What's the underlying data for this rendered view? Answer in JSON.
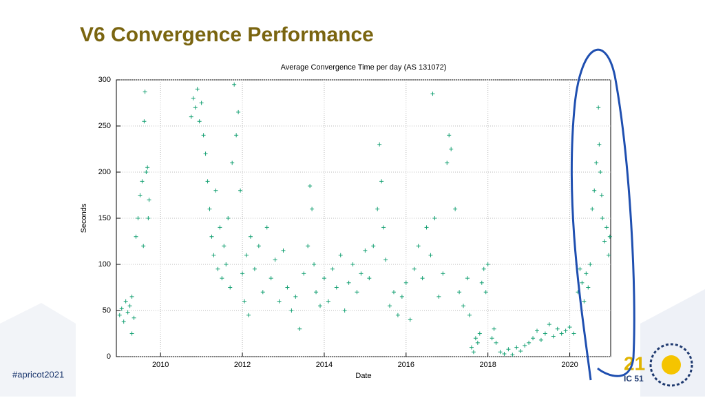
{
  "slide": {
    "title": "V6 Convergence Performance",
    "hashtag": "#apricot2021",
    "logo": [
      "21",
      "IC 51"
    ]
  },
  "chart_data": {
    "type": "scatter",
    "title": "Average Convergence Time per day (AS 131072)",
    "x_label": "Date",
    "y_label": "Seconds",
    "color": "#14a072",
    "grid": true,
    "xlim": [
      2008.92,
      2021.0
    ],
    "xticks": [
      2010,
      2012,
      2014,
      2016,
      2018,
      2020
    ],
    "ylim": [
      0,
      300
    ],
    "yticks": [
      0,
      50,
      100,
      150,
      200,
      250,
      300
    ],
    "x": [
      2009.0,
      2009.05,
      2009.1,
      2009.15,
      2009.2,
      2009.25,
      2009.3,
      2009.35,
      2009.4,
      2009.45,
      2009.5,
      2009.55,
      2009.6,
      2009.62,
      2009.65,
      2009.7,
      2009.72,
      2009.68,
      2009.58,
      2009.3,
      2010.75,
      2010.8,
      2010.85,
      2010.9,
      2010.95,
      2011.0,
      2011.05,
      2011.1,
      2011.15,
      2011.2,
      2011.25,
      2011.3,
      2011.35,
      2011.4,
      2011.45,
      2011.5,
      2011.55,
      2011.6,
      2011.65,
      2011.7,
      2011.75,
      2011.8,
      2011.85,
      2011.9,
      2011.95,
      2012.0,
      2012.05,
      2012.1,
      2012.15,
      2012.2,
      2012.3,
      2012.4,
      2012.5,
      2012.6,
      2012.7,
      2012.8,
      2012.9,
      2013.0,
      2013.1,
      2013.2,
      2013.3,
      2013.4,
      2013.5,
      2013.6,
      2013.65,
      2013.7,
      2013.75,
      2013.8,
      2013.9,
      2014.0,
      2014.1,
      2014.2,
      2014.3,
      2014.4,
      2014.5,
      2014.6,
      2014.7,
      2014.8,
      2014.9,
      2015.0,
      2015.1,
      2015.2,
      2015.3,
      2015.35,
      2015.4,
      2015.45,
      2015.5,
      2015.6,
      2015.7,
      2015.8,
      2015.9,
      2016.0,
      2016.1,
      2016.2,
      2016.3,
      2016.4,
      2016.5,
      2016.6,
      2016.65,
      2016.7,
      2016.8,
      2016.9,
      2017.0,
      2017.05,
      2017.1,
      2017.2,
      2017.3,
      2017.4,
      2017.5,
      2017.55,
      2017.6,
      2017.65,
      2017.7,
      2017.75,
      2017.8,
      2017.85,
      2017.9,
      2017.95,
      2018.0,
      2018.1,
      2018.15,
      2018.2,
      2018.3,
      2018.4,
      2018.5,
      2018.6,
      2018.7,
      2018.8,
      2018.9,
      2019.0,
      2019.1,
      2019.2,
      2019.3,
      2019.4,
      2019.5,
      2019.6,
      2019.7,
      2019.8,
      2019.9,
      2020.0,
      2020.1,
      2020.2,
      2020.25,
      2020.3,
      2020.35,
      2020.4,
      2020.45,
      2020.5,
      2020.55,
      2020.6,
      2020.65,
      2020.7,
      2020.72,
      2020.75,
      2020.78,
      2020.8,
      2020.85,
      2020.9,
      2020.95,
      2020.98
    ],
    "values": [
      45,
      52,
      38,
      60,
      48,
      55,
      65,
      42,
      130,
      150,
      175,
      190,
      255,
      287,
      200,
      150,
      170,
      205,
      120,
      25,
      260,
      280,
      270,
      290,
      255,
      275,
      240,
      220,
      190,
      160,
      130,
      110,
      180,
      95,
      140,
      85,
      120,
      100,
      150,
      75,
      210,
      295,
      240,
      265,
      180,
      90,
      60,
      110,
      45,
      130,
      95,
      120,
      70,
      140,
      85,
      105,
      60,
      115,
      75,
      50,
      65,
      30,
      90,
      120,
      185,
      160,
      100,
      70,
      55,
      85,
      60,
      95,
      75,
      110,
      50,
      80,
      100,
      70,
      90,
      115,
      85,
      120,
      160,
      230,
      190,
      140,
      105,
      55,
      70,
      45,
      65,
      80,
      40,
      95,
      120,
      85,
      140,
      110,
      285,
      150,
      65,
      90,
      210,
      240,
      225,
      160,
      70,
      55,
      85,
      45,
      10,
      5,
      20,
      15,
      25,
      80,
      95,
      70,
      100,
      20,
      30,
      15,
      5,
      3,
      8,
      2,
      10,
      6,
      12,
      15,
      20,
      28,
      18,
      25,
      35,
      22,
      30,
      25,
      28,
      32,
      25,
      70,
      95,
      80,
      60,
      90,
      75,
      100,
      160,
      180,
      210,
      270,
      230,
      200,
      175,
      150,
      125,
      140,
      110,
      130
    ]
  }
}
